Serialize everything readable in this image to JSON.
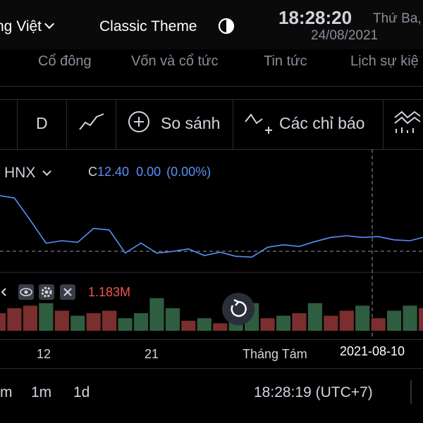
{
  "header": {
    "language": "ng Việt",
    "theme_label": "Classic Theme",
    "clock": "18:28:20",
    "weekday": "Thứ Ba,",
    "date": "24/08/2021"
  },
  "nav_tabs": [
    "Cổ đông",
    "Vốn và cổ tức",
    "Tin tức",
    "Lịch sự kiệ"
  ],
  "toolbar": {
    "interval": "D",
    "compare_label": "So sánh",
    "indicators_label": "Các chỉ báo"
  },
  "legend": {
    "symbol": "HNX",
    "close_label": "C",
    "close_value": "12.40",
    "change": "0.00",
    "change_pct": "(0.00%)"
  },
  "volume": {
    "value": "1.183M"
  },
  "x_axis": {
    "labels": [
      "12",
      "21",
      "Tháng Tám"
    ],
    "crosshair_label": "2021-08-10"
  },
  "bottom_bar": {
    "ranges": [
      "m",
      "1m",
      "1d"
    ],
    "time": "18:28:19 (UTC+7)"
  },
  "colors": {
    "line": "#5b8ff9",
    "volume_up": "#26a69a",
    "volume_down": "#ef5350"
  },
  "chart_data": {
    "type": "line",
    "x": [
      "p1",
      "p2",
      "p3",
      "p4",
      "p5",
      "p6",
      "p7",
      "p8",
      "p9",
      "p10",
      "p11",
      "p12",
      "p13",
      "p14",
      "p15",
      "p16",
      "p17",
      "p18",
      "p19",
      "p20",
      "p21",
      "p22",
      "p23",
      "p24",
      "p25",
      "p26",
      "p27",
      "p28"
    ],
    "series": [
      {
        "values": [
          12.9,
          12.87,
          12.6,
          12.32,
          12.35,
          12.33,
          12.5,
          12.48,
          12.2,
          12.32,
          12.2,
          12.22,
          12.25,
          12.17,
          12.21,
          12.16,
          12.15,
          12.27,
          12.3,
          12.28,
          12.34,
          12.39,
          12.41,
          12.39,
          12.4,
          12.36,
          12.35,
          12.4
        ]
      }
    ],
    "volume": [
      {
        "v": 0.7,
        "dir": "down"
      },
      {
        "v": 0.9,
        "dir": "down"
      },
      {
        "v": 1.0,
        "dir": "down"
      },
      {
        "v": 1.1,
        "dir": "up"
      },
      {
        "v": 0.8,
        "dir": "down"
      },
      {
        "v": 0.6,
        "dir": "up"
      },
      {
        "v": 0.7,
        "dir": "down"
      },
      {
        "v": 0.8,
        "dir": "down"
      },
      {
        "v": 0.5,
        "dir": "up"
      },
      {
        "v": 0.7,
        "dir": "up"
      },
      {
        "v": 1.3,
        "dir": "up"
      },
      {
        "v": 0.9,
        "dir": "up"
      },
      {
        "v": 0.4,
        "dir": "down"
      },
      {
        "v": 0.5,
        "dir": "up"
      },
      {
        "v": 0.3,
        "dir": "down"
      },
      {
        "v": 0.6,
        "dir": "up"
      },
      {
        "v": 1.1,
        "dir": "up"
      },
      {
        "v": 0.5,
        "dir": "down"
      },
      {
        "v": 0.6,
        "dir": "up"
      },
      {
        "v": 0.7,
        "dir": "down"
      },
      {
        "v": 1.1,
        "dir": "up"
      },
      {
        "v": 0.6,
        "dir": "down"
      },
      {
        "v": 0.8,
        "dir": "down"
      },
      {
        "v": 1.0,
        "dir": "up"
      },
      {
        "v": 0.5,
        "dir": "down"
      },
      {
        "v": 0.8,
        "dir": "up"
      },
      {
        "v": 1.0,
        "dir": "up"
      },
      {
        "v": 0.9,
        "dir": "down"
      }
    ]
  }
}
